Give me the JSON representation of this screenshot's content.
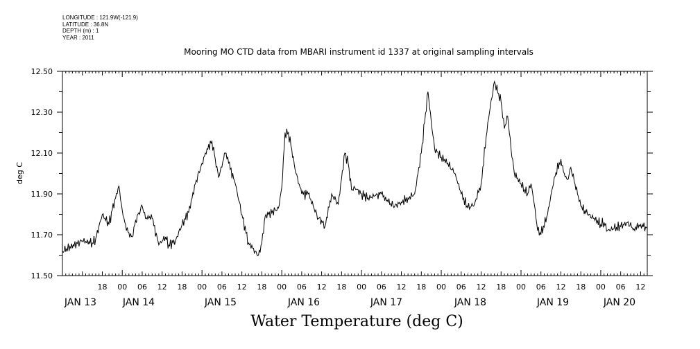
{
  "meta": {
    "longitude": "LONGITUDE : 121.9W(-121.9)",
    "latitude": "LATITUDE : 36.8N",
    "depth": "DEPTH (m) : 1",
    "year": "YEAR : 2011"
  },
  "chart_data": {
    "type": "line",
    "title": "Mooring MO CTD data from MBARI instrument id 1337 at original sampling intervals",
    "xlabel": "Water Temperature (deg C)",
    "ylabel": "deg C",
    "ylim": [
      11.5,
      12.5
    ],
    "yticks": [
      "11.50",
      "11.70",
      "11.90",
      "12.10",
      "12.30",
      "12.50"
    ],
    "xlim_hours_label": "Jan 13 06:00 to Jan 20 14:00",
    "hour_ticks": [
      "18",
      "00",
      "06",
      "12",
      "18",
      "00",
      "06",
      "12",
      "18",
      "00",
      "06",
      "12",
      "18",
      "00",
      "06",
      "12",
      "18",
      "00",
      "06",
      "12",
      "18",
      "00",
      "06",
      "12",
      "18",
      "00",
      "06",
      "12",
      "18",
      "00",
      "06",
      "12"
    ],
    "day_labels": [
      "JAN 13",
      "JAN 14",
      "JAN 15",
      "JAN 16",
      "JAN 17",
      "JAN 18",
      "JAN 19",
      "JAN 20"
    ],
    "grid": false,
    "series": [
      {
        "x": [
          "Jan 13 06:00",
          "Jan 13 12:00",
          "Jan 13 15:00",
          "Jan 13 16:00",
          "Jan 13 18:00",
          "Jan 13 20:00",
          "Jan 13 21:00",
          "Jan 13 23:00",
          "Jan 14 00:00",
          "Jan 14 01:00",
          "Jan 14 02:00",
          "Jan 14 03:00",
          "Jan 14 04:00",
          "Jan 14 06:00",
          "Jan 14 07:00",
          "Jan 14 08:00",
          "Jan 14 09:00",
          "Jan 14 11:00",
          "Jan 14 13:00",
          "Jan 14 14:00",
          "Jan 14 16:00",
          "Jan 14 18:00",
          "Jan 14 20:00",
          "Jan 14 22:00",
          "Jan 15 00:00",
          "Jan 15 01:00",
          "Jan 15 03:00",
          "Jan 15 04:00",
          "Jan 15 05:00",
          "Jan 15 07:00",
          "Jan 15 08:00",
          "Jan 15 10:00",
          "Jan 15 12:00",
          "Jan 15 14:00",
          "Jan 15 16:00",
          "Jan 15 17:00",
          "Jan 15 18:00",
          "Jan 15 19:00",
          "Jan 15 20:00",
          "Jan 15 23:00",
          "Jan 16 00:00",
          "Jan 16 01:00",
          "Jan 16 02:00",
          "Jan 16 03:00",
          "Jan 16 04:00",
          "Jan 16 06:00",
          "Jan 16 08:00",
          "Jan 16 11:00",
          "Jan 16 12:00",
          "Jan 16 13:00",
          "Jan 16 15:00",
          "Jan 16 17:00",
          "Jan 16 19:00",
          "Jan 16 20:00",
          "Jan 16 21:00",
          "Jan 16 22:00",
          "Jan 17 00:00",
          "Jan 17 02:00",
          "Jan 17 04:00",
          "Jan 17 06:00",
          "Jan 17 08:00",
          "Jan 17 10:00",
          "Jan 17 12:00",
          "Jan 17 14:00",
          "Jan 17 16:00",
          "Jan 17 18:00",
          "Jan 17 19:00",
          "Jan 17 20:00",
          "Jan 17 21:00",
          "Jan 17 22:00",
          "Jan 18 00:00",
          "Jan 18 02:00",
          "Jan 18 04:00",
          "Jan 18 05:00",
          "Jan 18 06:00",
          "Jan 18 08:00",
          "Jan 18 10:00",
          "Jan 18 12:00",
          "Jan 18 14:00",
          "Jan 18 16:00",
          "Jan 18 18:00",
          "Jan 18 19:00",
          "Jan 18 20:00",
          "Jan 18 21:00",
          "Jan 18 22:00",
          "Jan 19 00:00",
          "Jan 19 01:00",
          "Jan 19 02:00",
          "Jan 19 03:00",
          "Jan 19 04:00",
          "Jan 19 05:00",
          "Jan 19 06:00",
          "Jan 19 08:00",
          "Jan 19 10:00",
          "Jan 19 12:00",
          "Jan 19 13:00",
          "Jan 19 14:00",
          "Jan 19 15:00",
          "Jan 19 17:00",
          "Jan 19 18:00",
          "Jan 19 20:00",
          "Jan 19 22:00",
          "Jan 20 00:00",
          "Jan 20 01:00",
          "Jan 20 02:00",
          "Jan 20 04:00",
          "Jan 20 06:00",
          "Jan 20 08:00",
          "Jan 20 10:00",
          "Jan 20 12:00",
          "Jan 20 14:00"
        ],
        "y": [
          11.62,
          11.67,
          11.66,
          11.68,
          11.8,
          11.75,
          11.82,
          11.94,
          11.82,
          11.75,
          11.71,
          11.69,
          11.77,
          11.84,
          11.78,
          11.78,
          11.78,
          11.65,
          11.69,
          11.65,
          11.67,
          11.75,
          11.81,
          11.95,
          12.05,
          12.1,
          12.16,
          12.07,
          11.98,
          12.1,
          12.05,
          11.95,
          11.8,
          11.66,
          11.62,
          11.6,
          11.66,
          11.79,
          11.8,
          11.83,
          11.93,
          12.2,
          12.2,
          12.12,
          12.02,
          11.9,
          11.9,
          11.78,
          11.77,
          11.74,
          11.9,
          11.85,
          12.1,
          12.05,
          11.92,
          11.93,
          11.9,
          11.88,
          11.89,
          11.9,
          11.86,
          11.84,
          11.86,
          11.88,
          11.9,
          12.1,
          12.25,
          12.4,
          12.25,
          12.12,
          12.08,
          12.05,
          12.0,
          11.95,
          11.9,
          11.83,
          11.85,
          11.95,
          12.25,
          12.45,
          12.35,
          12.22,
          12.28,
          12.12,
          12.0,
          11.95,
          11.92,
          11.9,
          11.95,
          11.85,
          11.72,
          11.7,
          11.8,
          11.98,
          12.07,
          12.0,
          11.97,
          12.03,
          11.9,
          11.84,
          11.8,
          11.78,
          11.75,
          11.76,
          11.72,
          11.73,
          11.74,
          11.76,
          11.73,
          11.75,
          11.73
        ]
      }
    ]
  }
}
